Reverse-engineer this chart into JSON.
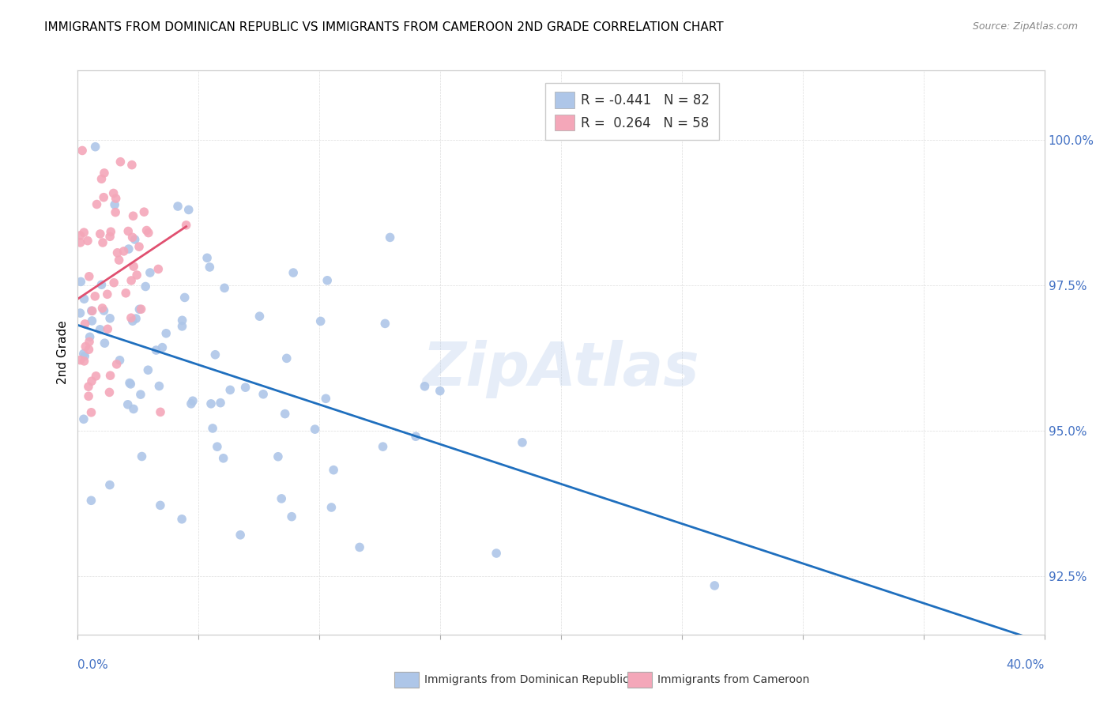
{
  "title": "IMMIGRANTS FROM DOMINICAN REPUBLIC VS IMMIGRANTS FROM CAMEROON 2ND GRADE CORRELATION CHART",
  "source": "Source: ZipAtlas.com",
  "ylabel": "2nd Grade",
  "xlim": [
    0.0,
    40.0
  ],
  "ylim": [
    91.5,
    101.2
  ],
  "yticks": [
    92.5,
    95.0,
    97.5,
    100.0
  ],
  "ytick_labels": [
    "92.5%",
    "95.0%",
    "97.5%",
    "100.0%"
  ],
  "blue_R": "-0.441",
  "blue_N": "82",
  "pink_R": "0.264",
  "pink_N": "58",
  "blue_color": "#aec6e8",
  "pink_color": "#f4a7b9",
  "blue_line_color": "#1f6fbe",
  "pink_line_color": "#e05070",
  "watermark": "ZipAtlas",
  "axis_label_color": "#4472c4",
  "title_fontsize": 11,
  "source_fontsize": 9,
  "tick_fontsize": 11
}
